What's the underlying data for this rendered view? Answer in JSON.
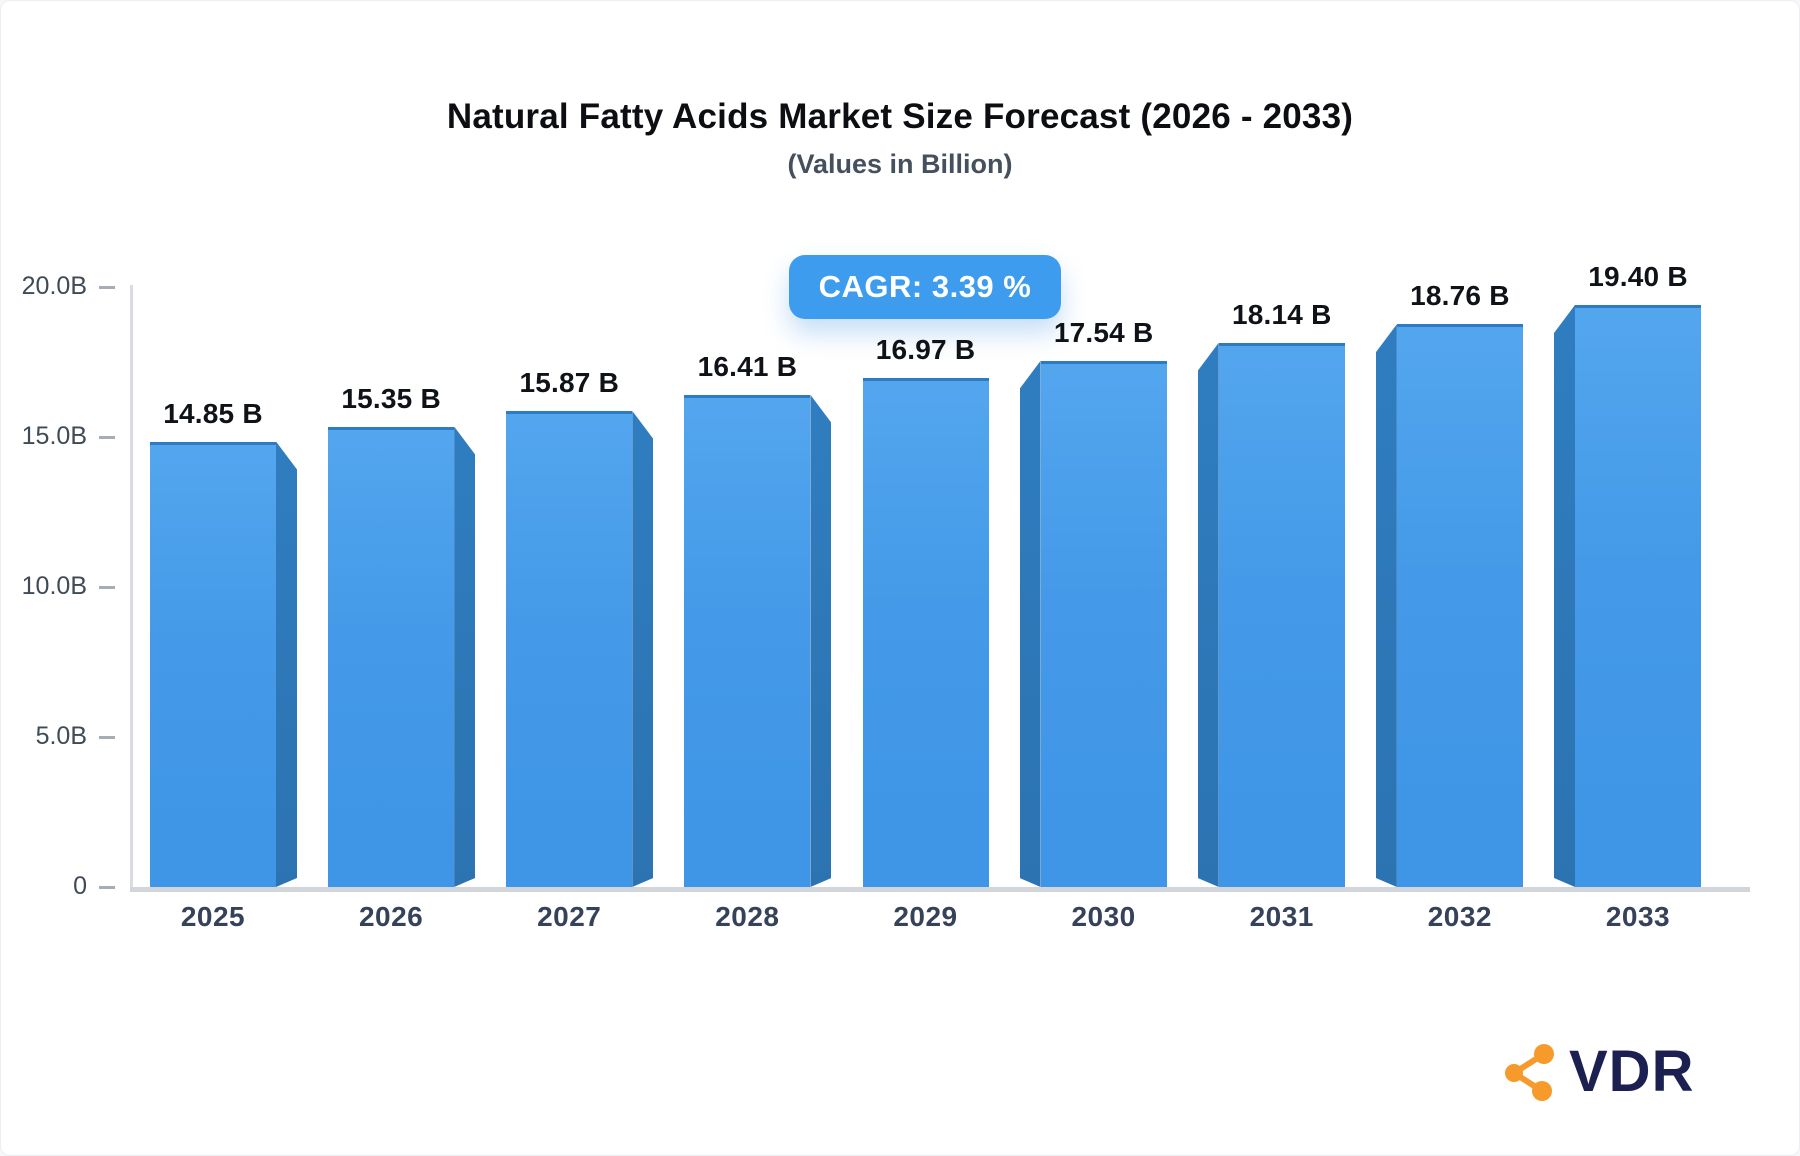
{
  "header": {
    "title": "Natural Fatty Acids Market Size Forecast (2026 - 2033)",
    "subtitle": "(Values in Billion)"
  },
  "badge": {
    "label": "CAGR: 3.39 %"
  },
  "logo": {
    "text": "VDR",
    "icon": "share-network-icon",
    "icon_color": "#F59A2B",
    "text_color": "#1B2050"
  },
  "chart_data": {
    "type": "bar",
    "title": "Natural Fatty Acids Market Size Forecast (2026 - 2033)",
    "subtitle": "(Values in Billion)",
    "cagr_annotation": "CAGR: 3.39 %",
    "categories": [
      "2025",
      "2026",
      "2027",
      "2028",
      "2029",
      "2030",
      "2031",
      "2032",
      "2033"
    ],
    "values": [
      14.85,
      15.35,
      15.87,
      16.41,
      16.97,
      17.54,
      18.14,
      18.76,
      19.4
    ],
    "value_labels": [
      "14.85 B",
      "15.35 B",
      "15.87 B",
      "16.41 B",
      "16.97 B",
      "17.54 B",
      "18.14 B",
      "18.76 B",
      "19.40 B"
    ],
    "yticks": [
      {
        "label": "20.0B",
        "value": 20
      },
      {
        "label": "15.0B",
        "value": 15
      },
      {
        "label": "10.0B",
        "value": 10
      },
      {
        "label": "5.0B",
        "value": 5
      },
      {
        "label": "0",
        "value": 0
      }
    ],
    "ylim": [
      0,
      20
    ],
    "xlabel": "",
    "ylabel": "",
    "grid": false,
    "legend": "none",
    "bar_color": "#4299E8",
    "bar_side_color": "#2E77B8",
    "bar_top_edge_color": "#2B7CC3",
    "badge_color": "#3E9CEE",
    "axis_color": "#D2D6DA"
  }
}
